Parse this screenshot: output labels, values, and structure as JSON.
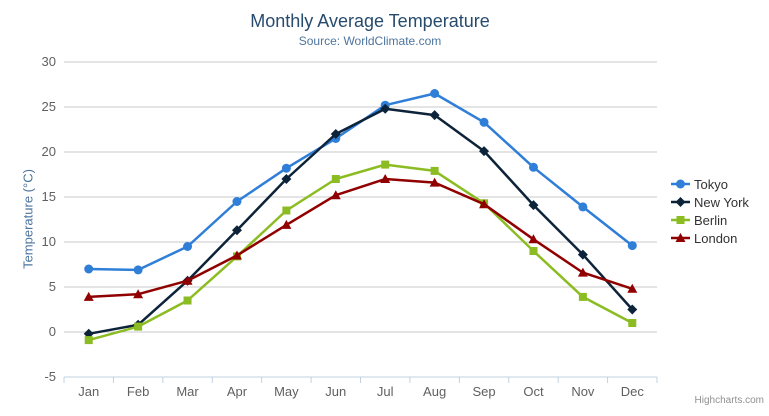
{
  "chart_data": {
    "type": "line",
    "title": "Monthly Average Temperature",
    "subtitle": "Source: WorldClimate.com",
    "categories": [
      "Jan",
      "Feb",
      "Mar",
      "Apr",
      "May",
      "Jun",
      "Jul",
      "Aug",
      "Sep",
      "Oct",
      "Nov",
      "Dec"
    ],
    "series": [
      {
        "name": "Tokyo",
        "color": "#2f7ed8",
        "marker": "circle",
        "values": [
          7.0,
          6.9,
          9.5,
          14.5,
          18.2,
          21.5,
          25.2,
          26.5,
          23.3,
          18.3,
          13.9,
          9.6
        ]
      },
      {
        "name": "New York",
        "color": "#0d233a",
        "marker": "diamond",
        "values": [
          -0.2,
          0.8,
          5.7,
          11.3,
          17.0,
          22.0,
          24.8,
          24.1,
          20.1,
          14.1,
          8.6,
          2.5
        ]
      },
      {
        "name": "Berlin",
        "color": "#8bbc21",
        "marker": "square",
        "values": [
          -0.9,
          0.6,
          3.5,
          8.4,
          13.5,
          17.0,
          18.6,
          17.9,
          14.3,
          9.0,
          3.9,
          1.0
        ]
      },
      {
        "name": "London",
        "color": "#910000",
        "marker": "triangle",
        "values": [
          3.9,
          4.2,
          5.7,
          8.5,
          11.9,
          15.2,
          17.0,
          16.6,
          14.2,
          10.3,
          6.6,
          4.8
        ]
      }
    ],
    "xlabel": "",
    "ylabel": "Temperature (°C)",
    "ylim": [
      -5,
      30
    ],
    "y_tick_interval": 5,
    "grid": true,
    "legend_position": "right",
    "credits": "Highcharts.com"
  },
  "colors": {
    "title": "#274b6d",
    "subtitle": "#4d759e",
    "axis_labels": "#606060",
    "axis_title": "#4d759e",
    "gridline": "#c8c8c8",
    "axis_line": "#c0d0e0",
    "legend_text": "#333333",
    "credits": "#909090",
    "menu_icon": "#666666"
  }
}
